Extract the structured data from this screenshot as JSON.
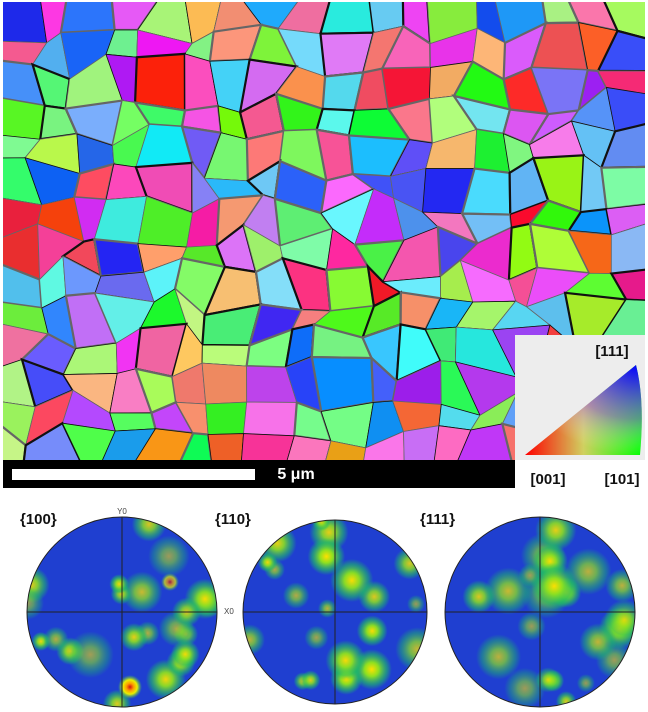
{
  "map": {
    "scale_bar_label": "5 μm"
  },
  "color_key": {
    "labels": [
      "[111]",
      "[001]",
      "[101]"
    ]
  },
  "pole_figures": [
    {
      "label": "{100}",
      "axis_labels": [
        "Y0",
        "X0"
      ]
    },
    {
      "label": "{110}"
    },
    {
      "label": "{111}"
    }
  ]
}
